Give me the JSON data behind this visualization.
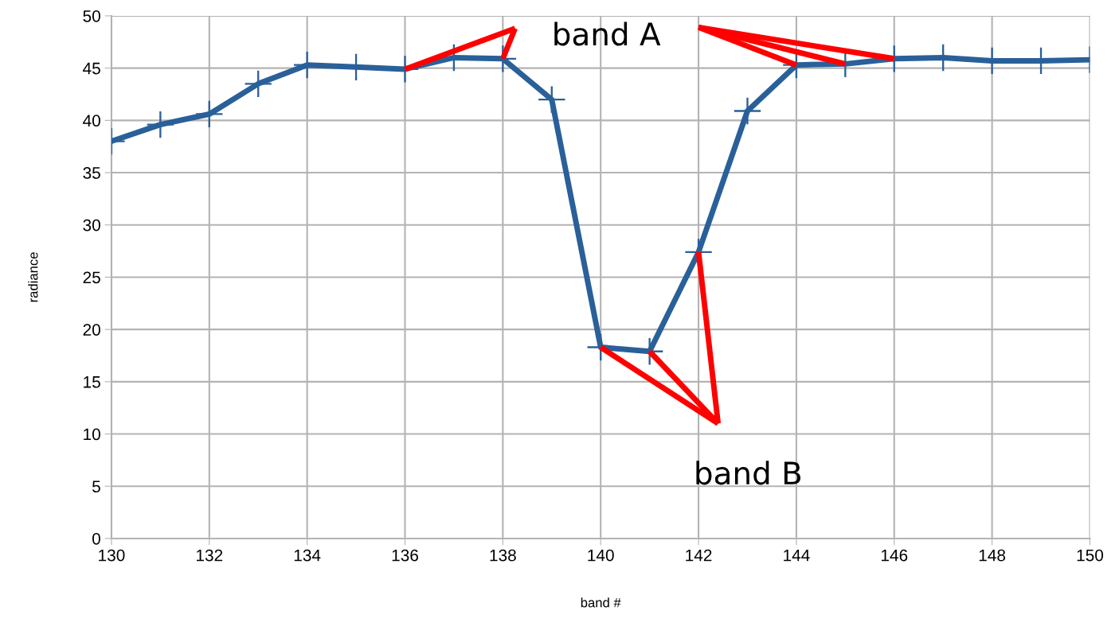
{
  "chart_data": {
    "type": "line",
    "xlabel": "band #",
    "ylabel": "radiance",
    "x": [
      130,
      131,
      132,
      133,
      134,
      135,
      136,
      137,
      138,
      139,
      140,
      141,
      142,
      143,
      144,
      145,
      146,
      147,
      148,
      149,
      150
    ],
    "series": [
      {
        "color": "#2a6099",
        "values": [
          38.0,
          39.6,
          40.6,
          43.5,
          45.3,
          45.1,
          44.9,
          46.0,
          45.9,
          42.0,
          18.3,
          17.9,
          27.4,
          40.9,
          45.3,
          45.4,
          45.9,
          46.0,
          45.7,
          45.7,
          45.8
        ]
      }
    ],
    "xlim": [
      130,
      150
    ],
    "xticks": [
      130,
      132,
      134,
      136,
      138,
      140,
      142,
      144,
      146,
      148,
      150
    ],
    "ylim": [
      0,
      50
    ],
    "yticks": [
      0,
      5,
      10,
      15,
      20,
      25,
      30,
      35,
      40,
      45,
      50
    ],
    "grid": true,
    "marker": "cross",
    "line_style": "solid",
    "annotations": [
      "band A",
      "band B"
    ]
  }
}
